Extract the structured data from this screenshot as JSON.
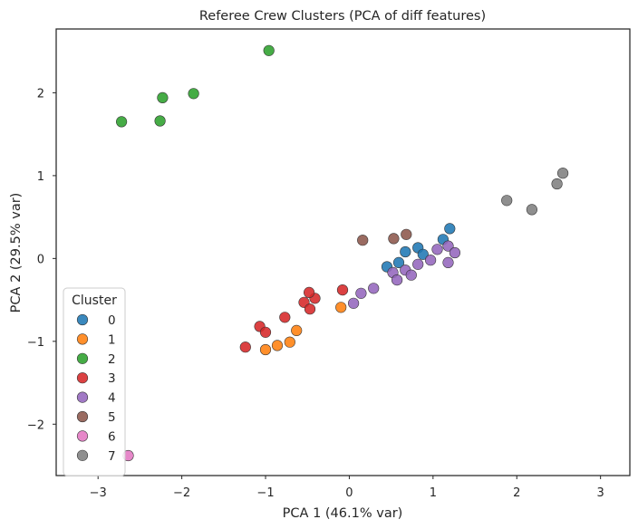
{
  "chart_data": {
    "type": "scatter",
    "title": "Referee Crew Clusters (PCA of diff features)",
    "xlabel": "PCA 1 (46.1% var)",
    "ylabel": "PCA 2 (29.5% var)",
    "xlim": [
      -3.5,
      3.35
    ],
    "ylim": [
      -2.62,
      2.77
    ],
    "xticks": [
      -3,
      -2,
      -1,
      0,
      1,
      2,
      3
    ],
    "xtick_labels": [
      "−3",
      "−2",
      "−1",
      "0",
      "1",
      "2",
      "3"
    ],
    "yticks": [
      -2,
      -1,
      0,
      1,
      2
    ],
    "ytick_labels": [
      "−2",
      "−1",
      "0",
      "1",
      "2"
    ],
    "grid": false,
    "legend": {
      "title": "Cluster",
      "position": "bottom-left"
    },
    "series": [
      {
        "name": "0",
        "color": "#1f77b4",
        "points": [
          [
            1.2,
            0.36
          ],
          [
            1.12,
            0.23
          ],
          [
            0.82,
            0.13
          ],
          [
            0.67,
            0.08
          ],
          [
            0.88,
            0.05
          ],
          [
            0.59,
            -0.05
          ],
          [
            0.45,
            -0.1
          ]
        ]
      },
      {
        "name": "1",
        "color": "#ff7f0e",
        "points": [
          [
            -0.1,
            -0.59
          ],
          [
            -0.63,
            -0.87
          ],
          [
            -0.71,
            -1.01
          ],
          [
            -0.86,
            -1.05
          ],
          [
            -1.0,
            -1.1
          ]
        ]
      },
      {
        "name": "2",
        "color": "#2ca02c",
        "points": [
          [
            -0.96,
            2.51
          ],
          [
            -1.86,
            1.99
          ],
          [
            -2.23,
            1.94
          ],
          [
            -2.26,
            1.66
          ],
          [
            -2.72,
            1.65
          ]
        ]
      },
      {
        "name": "3",
        "color": "#d62728",
        "points": [
          [
            -0.41,
            -0.48
          ],
          [
            -0.48,
            -0.41
          ],
          [
            -0.08,
            -0.38
          ],
          [
            -0.54,
            -0.53
          ],
          [
            -0.47,
            -0.61
          ],
          [
            -0.77,
            -0.71
          ],
          [
            -1.07,
            -0.82
          ],
          [
            -1.0,
            -0.89
          ],
          [
            -1.24,
            -1.07
          ]
        ]
      },
      {
        "name": "4",
        "color": "#9467bd",
        "points": [
          [
            1.18,
            0.15
          ],
          [
            1.05,
            0.11
          ],
          [
            1.26,
            0.07
          ],
          [
            0.97,
            -0.02
          ],
          [
            1.18,
            -0.05
          ],
          [
            0.82,
            -0.07
          ],
          [
            0.67,
            -0.14
          ],
          [
            0.52,
            -0.17
          ],
          [
            0.74,
            -0.2
          ],
          [
            0.57,
            -0.26
          ],
          [
            0.29,
            -0.36
          ],
          [
            0.14,
            -0.42
          ],
          [
            0.05,
            -0.54
          ]
        ]
      },
      {
        "name": "5",
        "color": "#8c564b",
        "points": [
          [
            0.68,
            0.29
          ],
          [
            0.53,
            0.24
          ],
          [
            0.16,
            0.22
          ]
        ]
      },
      {
        "name": "6",
        "color": "#e377c2",
        "points": [
          [
            -2.64,
            -2.38
          ]
        ]
      },
      {
        "name": "7",
        "color": "#7f7f7f",
        "points": [
          [
            2.55,
            1.03
          ],
          [
            2.48,
            0.9
          ],
          [
            1.88,
            0.7
          ],
          [
            2.18,
            0.59
          ]
        ]
      }
    ]
  }
}
